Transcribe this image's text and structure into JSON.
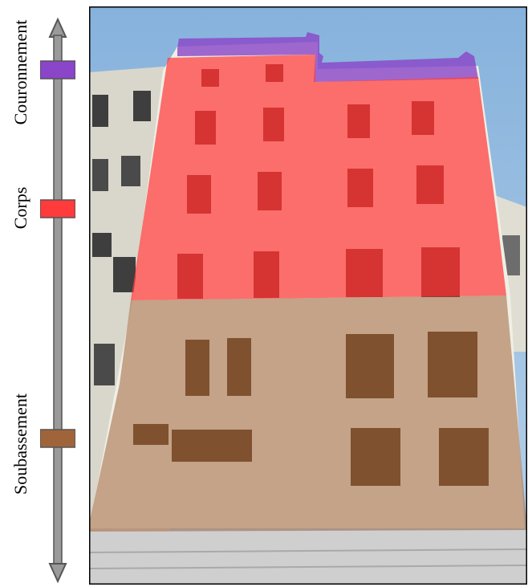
{
  "labels": {
    "couronnement": "Couronnement",
    "corps": "Corps",
    "soubassement": "Soubassement"
  },
  "colors": {
    "couronnement": "#8a45c8",
    "corps": "#ff3b3b",
    "soubassement": "#a0643a",
    "axis": "#8c8c8c",
    "sky": "#8fb7dd",
    "facade": "#ecece2",
    "street": "#cfcfcf"
  },
  "icons": [
    "axis-double-arrow"
  ]
}
